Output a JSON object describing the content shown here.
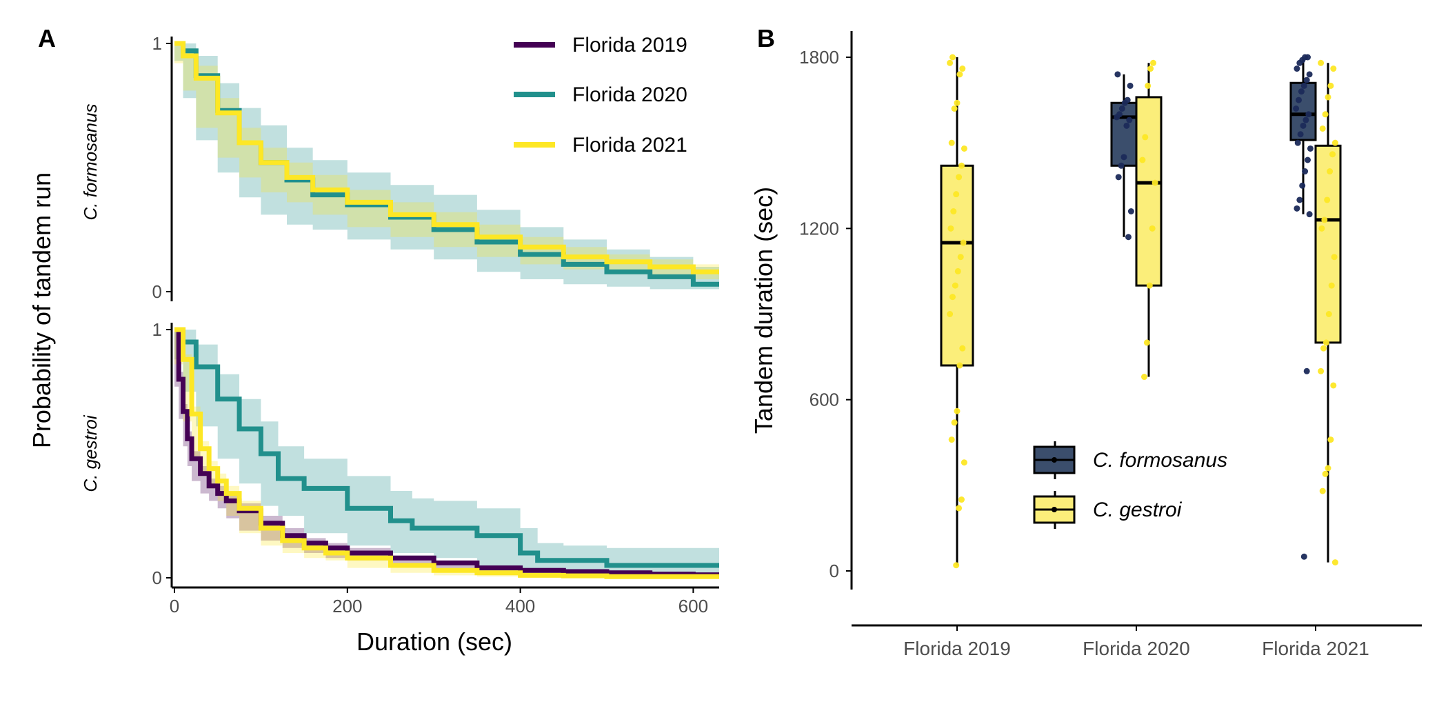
{
  "colors": {
    "florida_2019": "#440154",
    "florida_2020": "#21908C",
    "florida_2021": "#FDE725",
    "formosanus": "#3B4E6C",
    "gestroi": "#FBEE7A",
    "axis": "#000000",
    "tick_text": "#4D4D4D"
  },
  "panel_a": {
    "letter": "A",
    "ylabel": "Probability of tandem run",
    "xlabel": "Duration (sec)",
    "legend": [
      "Florida 2019",
      "Florida 2020",
      "Florida 2021"
    ],
    "facets": [
      "C. formosanus",
      "C. gestroi"
    ]
  },
  "panel_b": {
    "letter": "B",
    "ylabel": "Tandem duration (sec)",
    "legend": [
      "C. formosanus",
      "C. gestroi"
    ]
  },
  "chart_data": [
    {
      "type": "line",
      "title": "",
      "facet": "C. formosanus",
      "xlabel": "Duration (sec)",
      "ylabel": "Probability of tandem run",
      "xlim": [
        0,
        630
      ],
      "ylim": [
        0,
        1
      ],
      "x_ticks": [
        0,
        200,
        400,
        600
      ],
      "y_ticks": [
        0,
        1
      ],
      "legend_position": "top-right",
      "series": [
        {
          "name": "Florida 2020",
          "color": "#21908C",
          "points": [
            [
              0,
              1.0
            ],
            [
              10,
              0.97
            ],
            [
              25,
              0.87
            ],
            [
              50,
              0.73
            ],
            [
              75,
              0.6
            ],
            [
              100,
              0.52
            ],
            [
              130,
              0.45
            ],
            [
              160,
              0.39
            ],
            [
              200,
              0.35
            ],
            [
              250,
              0.3
            ],
            [
              300,
              0.25
            ],
            [
              350,
              0.2
            ],
            [
              400,
              0.15
            ],
            [
              450,
              0.11
            ],
            [
              500,
              0.08
            ],
            [
              550,
              0.06
            ],
            [
              600,
              0.03
            ],
            [
              630,
              0.03
            ]
          ],
          "ci_upper": [
            1.0,
            1.0,
            0.95,
            0.84,
            0.74,
            0.67,
            0.58,
            0.53,
            0.48,
            0.43,
            0.39,
            0.33,
            0.26,
            0.21,
            0.17,
            0.14,
            0.1,
            0.1
          ],
          "ci_lower": [
            1.0,
            0.93,
            0.78,
            0.61,
            0.48,
            0.38,
            0.31,
            0.27,
            0.25,
            0.21,
            0.17,
            0.13,
            0.08,
            0.05,
            0.03,
            0.02,
            0.01,
            0.01
          ]
        },
        {
          "name": "Florida 2021",
          "color": "#FDE725",
          "points": [
            [
              0,
              1.0
            ],
            [
              10,
              0.95
            ],
            [
              25,
              0.86
            ],
            [
              50,
              0.72
            ],
            [
              75,
              0.6
            ],
            [
              100,
              0.52
            ],
            [
              130,
              0.46
            ],
            [
              160,
              0.41
            ],
            [
              200,
              0.36
            ],
            [
              250,
              0.31
            ],
            [
              300,
              0.27
            ],
            [
              350,
              0.22
            ],
            [
              400,
              0.18
            ],
            [
              450,
              0.14
            ],
            [
              500,
              0.12
            ],
            [
              550,
              0.1
            ],
            [
              600,
              0.08
            ],
            [
              630,
              0.08
            ]
          ],
          "ci_upper": [
            1.0,
            0.98,
            0.91,
            0.78,
            0.66,
            0.58,
            0.52,
            0.47,
            0.41,
            0.36,
            0.32,
            0.27,
            0.22,
            0.18,
            0.15,
            0.13,
            0.11,
            0.11
          ],
          "ci_lower": [
            1.0,
            0.92,
            0.81,
            0.66,
            0.54,
            0.46,
            0.4,
            0.36,
            0.31,
            0.26,
            0.22,
            0.18,
            0.14,
            0.11,
            0.09,
            0.07,
            0.05,
            0.05
          ]
        }
      ]
    },
    {
      "type": "line",
      "title": "",
      "facet": "C. gestroi",
      "xlabel": "Duration (sec)",
      "ylabel": "Probability of tandem run",
      "xlim": [
        0,
        630
      ],
      "ylim": [
        0,
        1
      ],
      "x_ticks": [
        0,
        200,
        400,
        600
      ],
      "y_ticks": [
        0,
        1
      ],
      "series": [
        {
          "name": "Florida 2020",
          "color": "#21908C",
          "points": [
            [
              0,
              1.0
            ],
            [
              10,
              0.95
            ],
            [
              25,
              0.85
            ],
            [
              50,
              0.72
            ],
            [
              75,
              0.6
            ],
            [
              100,
              0.5
            ],
            [
              120,
              0.4
            ],
            [
              150,
              0.36
            ],
            [
              200,
              0.28
            ],
            [
              250,
              0.23
            ],
            [
              275,
              0.2
            ],
            [
              300,
              0.2
            ],
            [
              350,
              0.17
            ],
            [
              400,
              0.1
            ],
            [
              420,
              0.07
            ],
            [
              450,
              0.07
            ],
            [
              500,
              0.05
            ],
            [
              550,
              0.05
            ],
            [
              630,
              0.05
            ]
          ],
          "ci_upper": [
            1.0,
            1.0,
            0.94,
            0.82,
            0.72,
            0.63,
            0.53,
            0.48,
            0.41,
            0.35,
            0.32,
            0.31,
            0.28,
            0.2,
            0.14,
            0.13,
            0.12,
            0.12,
            0.12
          ],
          "ci_lower": [
            1.0,
            0.88,
            0.75,
            0.61,
            0.48,
            0.38,
            0.29,
            0.25,
            0.18,
            0.13,
            0.1,
            0.1,
            0.08,
            0.04,
            0.02,
            0.02,
            0.01,
            0.01,
            0.01
          ]
        },
        {
          "name": "Florida 2019",
          "color": "#440154",
          "points": [
            [
              0,
              1.0
            ],
            [
              5,
              0.8
            ],
            [
              10,
              0.67
            ],
            [
              15,
              0.56
            ],
            [
              20,
              0.48
            ],
            [
              30,
              0.42
            ],
            [
              40,
              0.37
            ],
            [
              50,
              0.34
            ],
            [
              60,
              0.31
            ],
            [
              75,
              0.27
            ],
            [
              100,
              0.22
            ],
            [
              125,
              0.17
            ],
            [
              150,
              0.14
            ],
            [
              175,
              0.12
            ],
            [
              200,
              0.1
            ],
            [
              250,
              0.08
            ],
            [
              300,
              0.06
            ],
            [
              350,
              0.04
            ],
            [
              400,
              0.03
            ],
            [
              450,
              0.025
            ],
            [
              500,
              0.02
            ],
            [
              550,
              0.015
            ],
            [
              600,
              0.012
            ],
            [
              630,
              0.012
            ]
          ],
          "ci_upper": [
            1.0,
            0.83,
            0.7,
            0.59,
            0.51,
            0.45,
            0.4,
            0.37,
            0.34,
            0.3,
            0.25,
            0.2,
            0.16,
            0.14,
            0.12,
            0.09,
            0.07,
            0.05,
            0.04,
            0.035,
            0.03,
            0.025,
            0.02,
            0.02
          ],
          "ci_lower": [
            1.0,
            0.77,
            0.64,
            0.53,
            0.45,
            0.39,
            0.34,
            0.31,
            0.28,
            0.24,
            0.19,
            0.15,
            0.12,
            0.1,
            0.08,
            0.07,
            0.05,
            0.03,
            0.02,
            0.015,
            0.01,
            0.008,
            0.005,
            0.005
          ]
        },
        {
          "name": "Florida 2021",
          "color": "#FDE725",
          "points": [
            [
              0,
              1.0
            ],
            [
              10,
              0.88
            ],
            [
              20,
              0.66
            ],
            [
              30,
              0.52
            ],
            [
              40,
              0.44
            ],
            [
              50,
              0.39
            ],
            [
              60,
              0.34
            ],
            [
              75,
              0.28
            ],
            [
              100,
              0.2
            ],
            [
              125,
              0.15
            ],
            [
              150,
              0.12
            ],
            [
              175,
              0.1
            ],
            [
              200,
              0.08
            ],
            [
              250,
              0.05
            ],
            [
              300,
              0.03
            ],
            [
              350,
              0.02
            ],
            [
              400,
              0.01
            ],
            [
              450,
              0.008
            ],
            [
              500,
              0.005
            ],
            [
              630,
              0.005
            ]
          ],
          "ci_upper": [
            1.0,
            0.9,
            0.69,
            0.55,
            0.47,
            0.42,
            0.37,
            0.31,
            0.22,
            0.17,
            0.14,
            0.12,
            0.09,
            0.06,
            0.04,
            0.03,
            0.02,
            0.015,
            0.01,
            0.01
          ],
          "ci_lower": [
            1.0,
            0.86,
            0.63,
            0.49,
            0.41,
            0.36,
            0.31,
            0.25,
            0.18,
            0.13,
            0.1,
            0.08,
            0.07,
            0.04,
            0.02,
            0.01,
            0.005,
            0.003,
            0.002,
            0.002
          ]
        }
      ]
    },
    {
      "type": "box",
      "title": "",
      "xlabel": "",
      "ylabel": "Tandem duration (sec)",
      "categories": [
        "Florida 2019",
        "Florida 2020",
        "Florida 2021"
      ],
      "ylim": [
        0,
        1800
      ],
      "y_ticks": [
        0,
        600,
        1200,
        1800
      ],
      "legend_position": "bottom-left",
      "series": [
        {
          "name": "C. formosanus",
          "color": "#3B4E6C",
          "point_color": "#1B2A5A",
          "boxes": [
            null,
            {
              "min": 1170,
              "q1": 1420,
              "median": 1590,
              "q3": 1640,
              "max": 1740
            },
            {
              "min": 1250,
              "q1": 1510,
              "median": 1600,
              "q3": 1710,
              "max": 1800
            }
          ],
          "points": [
            [],
            [
              1170,
              1260,
              1380,
              1420,
              1450,
              1560,
              1580,
              1590,
              1600,
              1620,
              1640,
              1650,
              1700,
              1740
            ],
            [
              50,
              700,
              1250,
              1270,
              1300,
              1350,
              1400,
              1440,
              1480,
              1500,
              1530,
              1560,
              1580,
              1600,
              1620,
              1650,
              1680,
              1700,
              1720,
              1740,
              1760,
              1780,
              1790,
              1800,
              1800
            ]
          ]
        },
        {
          "name": "C. gestroi",
          "color": "#FBEE7A",
          "point_color": "#FDE725",
          "boxes": [
            {
              "min": 20,
              "q1": 720,
              "median": 1150,
              "q3": 1420,
              "max": 1800
            },
            {
              "min": 680,
              "q1": 1000,
              "median": 1360,
              "q3": 1660,
              "max": 1780
            },
            {
              "min": 30,
              "q1": 800,
              "median": 1230,
              "q3": 1490,
              "max": 1780
            }
          ],
          "points": [
            [
              20,
              220,
              250,
              380,
              460,
              520,
              560,
              720,
              780,
              900,
              960,
              1000,
              1050,
              1100,
              1150,
              1200,
              1260,
              1320,
              1380,
              1420,
              1480,
              1500,
              1620,
              1640,
              1740,
              1760,
              1780,
              1800
            ],
            [
              680,
              800,
              1000,
              1200,
              1360,
              1440,
              1520,
              1700,
              1760,
              1780
            ],
            [
              30,
              280,
              340,
              360,
              460,
              650,
              700,
              780,
              800,
              900,
              1000,
              1100,
              1200,
              1230,
              1300,
              1400,
              1460,
              1500,
              1550,
              1600,
              1660,
              1700,
              1760,
              1780
            ]
          ]
        }
      ]
    }
  ]
}
